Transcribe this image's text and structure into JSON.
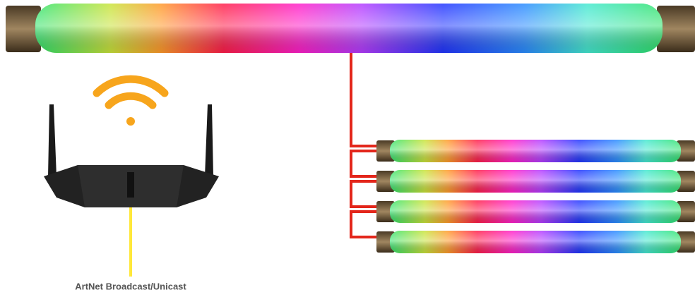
{
  "caption": "ArtNet Broadcast/Unicast"
}
